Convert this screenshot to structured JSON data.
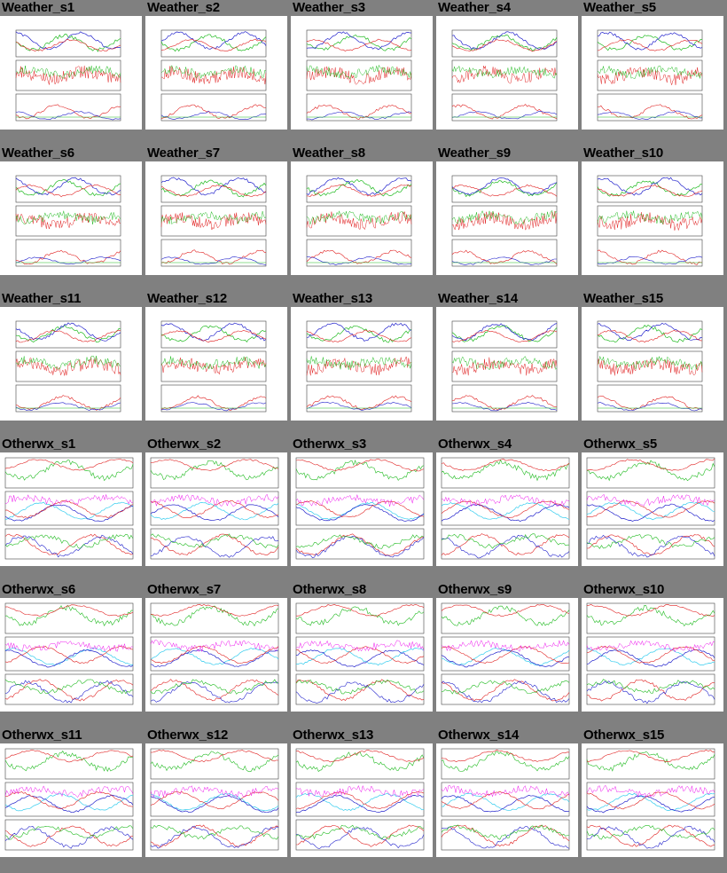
{
  "gallery": {
    "rows": [
      {
        "kind": "weather",
        "items": [
          {
            "name": "Weather_s1"
          },
          {
            "name": "Weather_s2"
          },
          {
            "name": "Weather_s3"
          },
          {
            "name": "Weather_s4"
          },
          {
            "name": "Weather_s5"
          }
        ]
      },
      {
        "kind": "weather",
        "items": [
          {
            "name": "Weather_s6"
          },
          {
            "name": "Weather_s7"
          },
          {
            "name": "Weather_s8"
          },
          {
            "name": "Weather_s9"
          },
          {
            "name": "Weather_s10"
          }
        ]
      },
      {
        "kind": "weather",
        "items": [
          {
            "name": "Weather_s11"
          },
          {
            "name": "Weather_s12"
          },
          {
            "name": "Weather_s13"
          },
          {
            "name": "Weather_s14"
          },
          {
            "name": "Weather_s15"
          }
        ]
      },
      {
        "kind": "otherwx",
        "items": [
          {
            "name": "Otherwx_s1"
          },
          {
            "name": "Otherwx_s2"
          },
          {
            "name": "Otherwx_s3"
          },
          {
            "name": "Otherwx_s4"
          },
          {
            "name": "Otherwx_s5"
          }
        ]
      },
      {
        "kind": "otherwx",
        "items": [
          {
            "name": "Otherwx_s6"
          },
          {
            "name": "Otherwx_s7"
          },
          {
            "name": "Otherwx_s8"
          },
          {
            "name": "Otherwx_s9"
          },
          {
            "name": "Otherwx_s10"
          }
        ]
      },
      {
        "kind": "otherwx",
        "items": [
          {
            "name": "Otherwx_s11"
          },
          {
            "name": "Otherwx_s12"
          },
          {
            "name": "Otherwx_s13"
          },
          {
            "name": "Otherwx_s14"
          },
          {
            "name": "Otherwx_s15"
          }
        ]
      }
    ]
  },
  "colors": {
    "background": "#808080",
    "panel": "#ffffff",
    "red": "#e02020",
    "green": "#22bb22",
    "blue": "#2222cc",
    "cyan": "#33ccee",
    "magenta": "#ee11ee"
  }
}
